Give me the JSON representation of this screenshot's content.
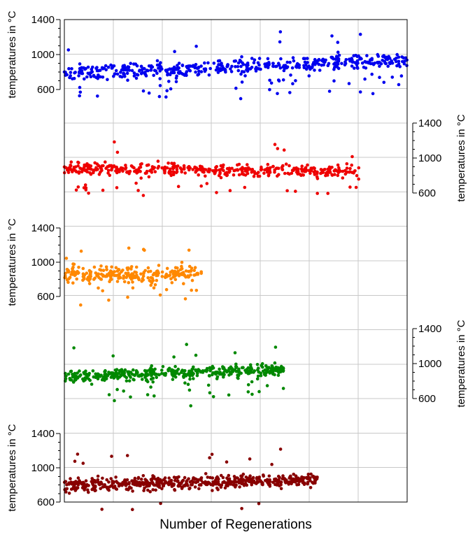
{
  "chart_data": {
    "type": "scatter",
    "title": "",
    "xlabel": "Number of Regenerations",
    "ylabel": "temperatures in °C",
    "grid": true,
    "panels": [
      {
        "name": "",
        "color": "#0000ee",
        "axis_side": "left",
        "ylim": [
          600,
          1400
        ],
        "yticks": [
          600,
          1000,
          1400
        ],
        "n": 520,
        "x_range": [
          0,
          1
        ],
        "base": 780,
        "trend": 160,
        "noise": 70,
        "low_outliers": 0.08,
        "high_outliers": 0.02
      },
      {
        "name": "",
        "color": "#ee0000",
        "axis_side": "right",
        "ylim": [
          600,
          1400
        ],
        "yticks": [
          600,
          1000,
          1400
        ],
        "n": 430,
        "x_range": [
          0,
          0.86
        ],
        "base": 880,
        "trend": -40,
        "noise": 55,
        "low_outliers": 0.07,
        "high_outliers": 0.02
      },
      {
        "name": "",
        "color": "#ff8800",
        "axis_side": "left",
        "ylim": [
          600,
          1400
        ],
        "yticks": [
          600,
          1000,
          1400
        ],
        "n": 260,
        "x_range": [
          0,
          0.4
        ],
        "base": 860,
        "trend": 0,
        "noise": 75,
        "low_outliers": 0.06,
        "high_outliers": 0.03
      },
      {
        "name": "",
        "color": "#008800",
        "axis_side": "right",
        "ylim": [
          600,
          1400
        ],
        "yticks": [
          600,
          1000,
          1400
        ],
        "n": 430,
        "x_range": [
          0,
          0.64
        ],
        "base": 850,
        "trend": 80,
        "noise": 55,
        "low_outliers": 0.07,
        "high_outliers": 0.02
      },
      {
        "name": "",
        "color": "#880000",
        "axis_side": "left",
        "ylim": [
          600,
          1400
        ],
        "yticks": [
          600,
          1000,
          1400
        ],
        "n": 560,
        "x_range": [
          0,
          0.74
        ],
        "base": 800,
        "trend": 60,
        "noise": 60,
        "low_outliers": 0.02,
        "high_outliers": 0.02
      }
    ]
  }
}
